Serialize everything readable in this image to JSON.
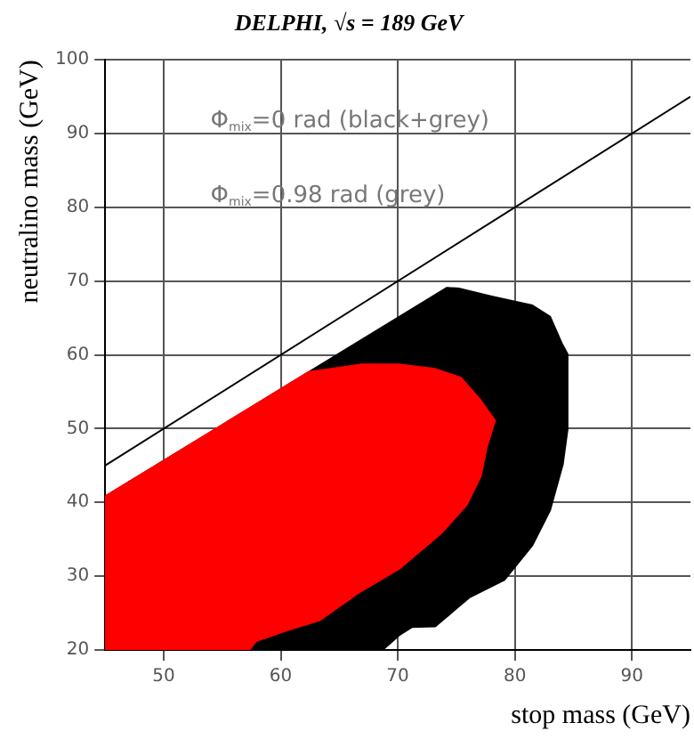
{
  "chart_data": {
    "type": "area",
    "title": "DELPHI, √s = 189 GeV",
    "xlabel": "stop mass (GeV)",
    "ylabel": "neutralino mass (GeV)",
    "annotations": [
      "Φ$_{mix}$=0 rad (black+grey)",
      "Φ$_{mix}$=0.98 rad (grey)"
    ],
    "xlim": [
      45,
      95
    ],
    "xticks": [
      50,
      60,
      70,
      80,
      90
    ],
    "ylim": [
      20,
      100
    ],
    "yticks": [
      20,
      30,
      40,
      50,
      60,
      70,
      80,
      90,
      100
    ],
    "grid": true,
    "legend": false,
    "marker": "none",
    "series": [
      {
        "color": "#000000",
        "x": [
          45,
          74.2,
          75.2,
          78.1,
          81.5,
          83.0,
          84.0,
          84.5,
          84.5,
          84.1,
          83.0,
          81.5,
          79.1,
          76.1,
          73.2,
          71.2,
          70.2,
          68.7,
          45,
          45
        ],
        "values": [
          40.8,
          69.1,
          69.0,
          67.9,
          66.7,
          65.2,
          61.6,
          60.1,
          49.9,
          45.2,
          38.9,
          34.2,
          29.5,
          27.1,
          23.2,
          23.1,
          22.1,
          20,
          20,
          40.8
        ]
      },
      {
        "color": "#ff0000",
        "x": [
          45,
          62.4,
          64.3,
          66.8,
          70.2,
          73.2,
          75.4,
          77.1,
          78.3,
          77.6,
          77.1,
          75.9,
          73.7,
          70.2,
          66.8,
          63.3,
          60.4,
          57.9,
          57.3,
          45,
          45
        ],
        "values": [
          40.8,
          57.7,
          58.1,
          58.7,
          58.7,
          58.1,
          56.9,
          53.8,
          51.1,
          47.5,
          43.6,
          39.7,
          35.8,
          31.1,
          27.9,
          24.0,
          22.6,
          21.2,
          20,
          20,
          40.8
        ]
      },
      {
        "type": "line",
        "color": "#000000",
        "x": [
          45,
          95
        ],
        "values": [
          45,
          95
        ]
      }
    ]
  }
}
